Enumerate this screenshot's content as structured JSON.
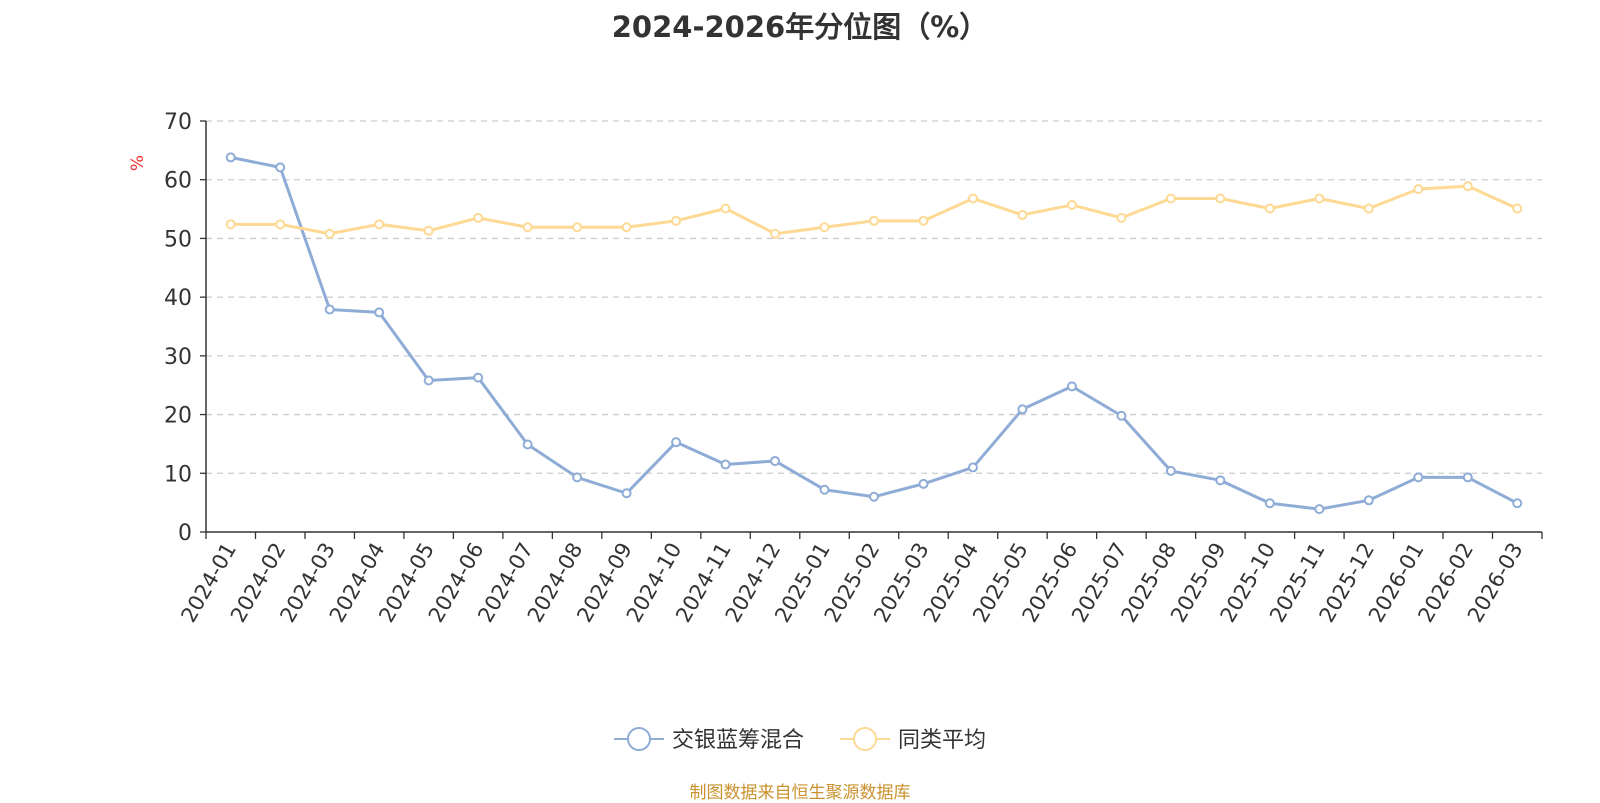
{
  "chart_data": {
    "type": "line",
    "title": "2024-2026年分位图（%）",
    "ylabel": "%",
    "xlabel": "",
    "ylim": [
      0,
      70
    ],
    "yticks": [
      0,
      10,
      20,
      30,
      40,
      50,
      60,
      70
    ],
    "grid": true,
    "legend_position": "bottom-center",
    "categories": [
      "2024-01",
      "2024-02",
      "2024-03",
      "2024-04",
      "2024-05",
      "2024-06",
      "2024-07",
      "2024-08",
      "2024-09",
      "2024-10",
      "2024-11",
      "2024-12",
      "2025-01",
      "2025-02",
      "2025-03",
      "2025-04",
      "2025-05",
      "2025-06",
      "2025-07",
      "2025-08",
      "2025-09",
      "2025-10",
      "2025-11",
      "2025-12",
      "2026-01",
      "2026-02",
      "2026-03"
    ],
    "series": [
      {
        "name": "交银蓝筹混合",
        "color": "#8eacd6",
        "values": [
          63.8,
          62.1,
          37.9,
          37.4,
          25.8,
          26.3,
          14.9,
          9.3,
          6.6,
          15.3,
          11.5,
          12.1,
          7.2,
          6.0,
          8.2,
          11.0,
          20.9,
          24.8,
          19.8,
          10.4,
          8.8,
          4.9,
          3.9,
          5.4,
          9.3,
          9.3,
          4.9
        ]
      },
      {
        "name": "同类平均",
        "color": "#fdd994",
        "values": [
          52.4,
          52.4,
          50.8,
          52.4,
          51.3,
          53.5,
          51.9,
          51.9,
          51.9,
          53.0,
          55.1,
          50.8,
          51.9,
          53.0,
          53.0,
          56.8,
          54.0,
          55.7,
          53.5,
          56.8,
          56.8,
          55.1,
          56.8,
          55.1,
          58.4,
          58.9,
          55.1
        ]
      }
    ]
  },
  "source_text": "制图数据来自恒生聚源数据库"
}
